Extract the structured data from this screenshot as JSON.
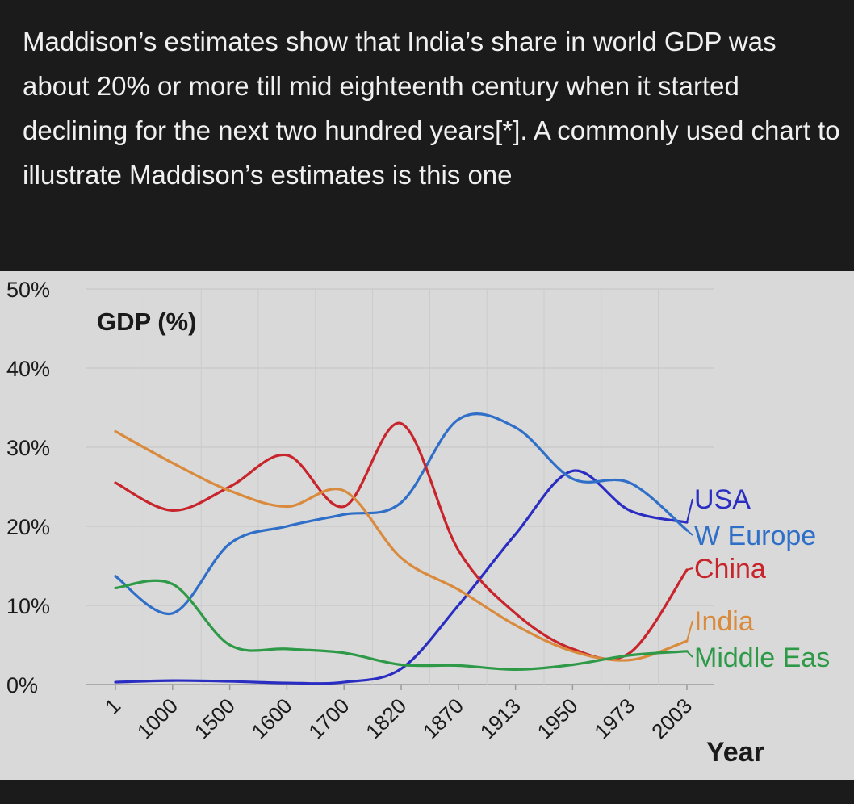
{
  "post": {
    "text": "Maddison’s estimates show that India’s share in world GDP was about 20% or more till mid eighteenth century when it started declining for the next two hundred years[*]. A commonly used chart to illustrate Maddison’s estimates is this one"
  },
  "chart_data": {
    "type": "line",
    "ylabel": "GDP (%)",
    "xlabel": "Year",
    "categories": [
      "1",
      "1000",
      "1500",
      "1600",
      "1700",
      "1820",
      "1870",
      "1913",
      "1950",
      "1973",
      "2003"
    ],
    "ylim": [
      0,
      50
    ],
    "yticks": [
      "0%",
      "10%",
      "20%",
      "30%",
      "40%",
      "50%"
    ],
    "grid": true,
    "legend": "right",
    "series": [
      {
        "name": "USA",
        "color": "#2a2dc2",
        "values": [
          0.3,
          0.5,
          0.4,
          0.2,
          0.3,
          2,
          10,
          19,
          27,
          22,
          20.5
        ]
      },
      {
        "name": "W Europe",
        "color": "#2f6fc8",
        "values": [
          13.7,
          9,
          17.8,
          20,
          21.5,
          23,
          33.5,
          32.5,
          26,
          25.5,
          19.5
        ]
      },
      {
        "name": "China",
        "color": "#c8242c",
        "values": [
          25.5,
          22,
          25,
          29,
          22.5,
          33,
          17,
          9,
          4.5,
          4,
          14.5
        ]
      },
      {
        "name": "India",
        "color": "#d98a3c",
        "values": [
          32,
          28,
          24.5,
          22.5,
          24.5,
          16,
          12,
          7.5,
          4.2,
          3.1,
          5.5
        ]
      },
      {
        "name": "Middle Eas",
        "color": "#2e9a48",
        "values": [
          12.2,
          12.7,
          5,
          4.5,
          4,
          2.5,
          2.4,
          1.9,
          2.5,
          3.7,
          4.2
        ]
      }
    ]
  }
}
